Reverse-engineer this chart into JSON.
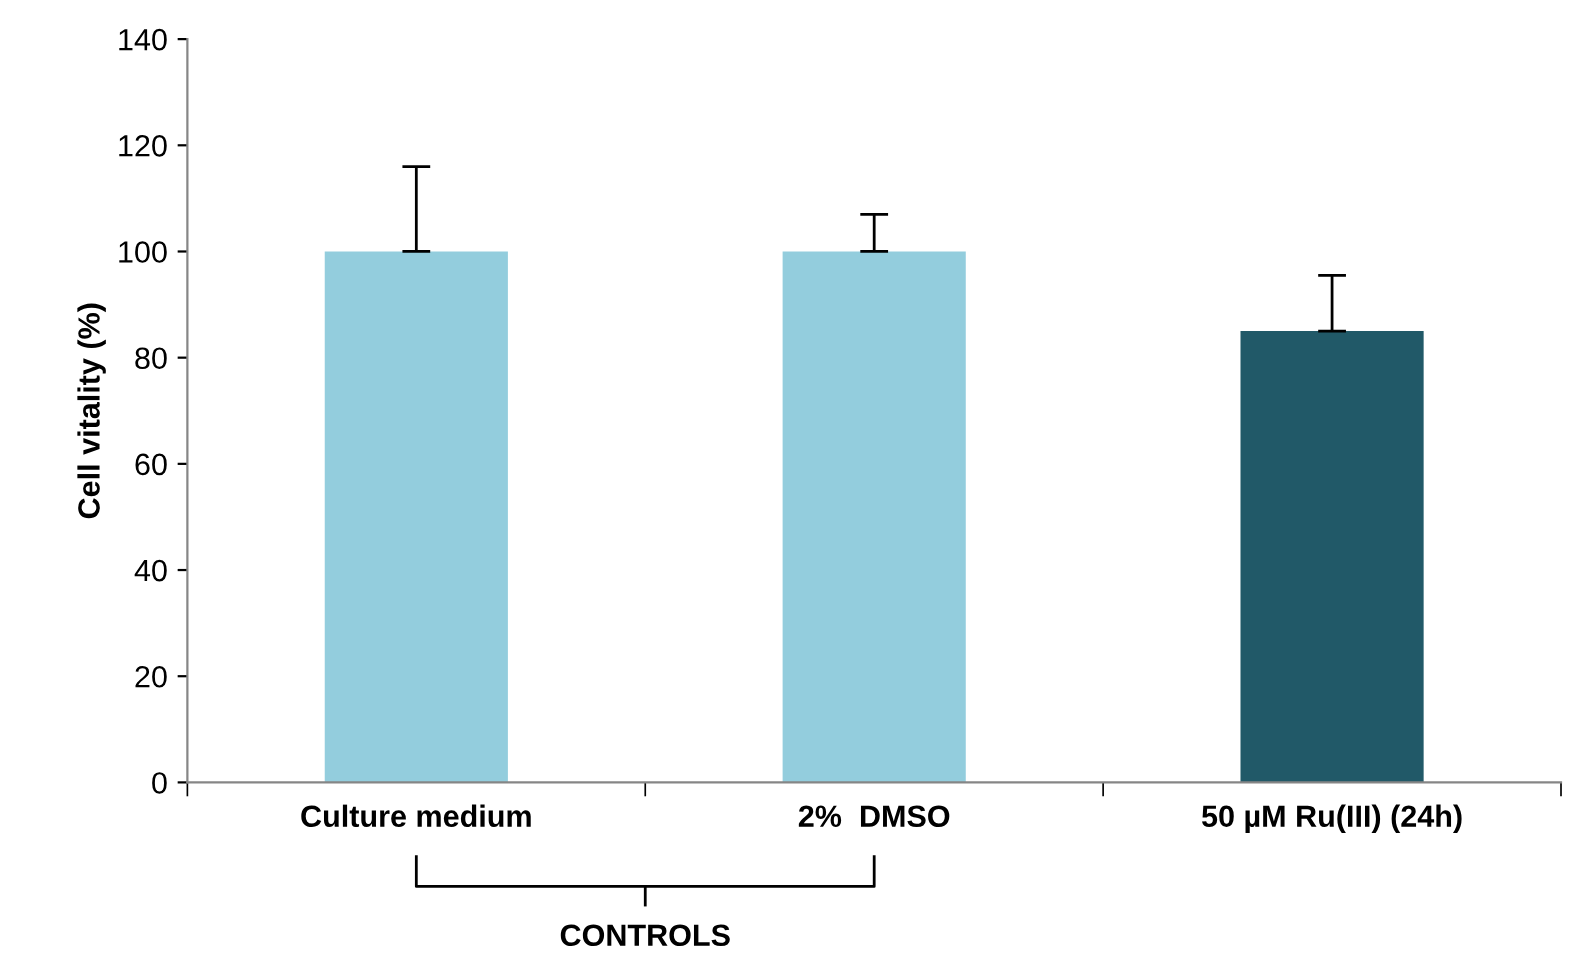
{
  "chart_data": {
    "type": "bar",
    "ylabel": "Cell vitality (%)",
    "categories": [
      "Culture medium",
      "2%  DMSO",
      "50 µM Ru(III) (24h)"
    ],
    "values": [
      100,
      100,
      85
    ],
    "colors": [
      "#93cddd",
      "#93cddd",
      "#215968"
    ],
    "errors": [
      [
        100,
        116
      ],
      [
        100,
        107
      ],
      [
        85,
        95.5
      ]
    ],
    "ylim": [
      0,
      140
    ],
    "yticks": [
      0,
      20,
      40,
      60,
      80,
      100,
      120,
      140
    ],
    "grid": false,
    "annotations": [
      "CONTROLS"
    ]
  }
}
